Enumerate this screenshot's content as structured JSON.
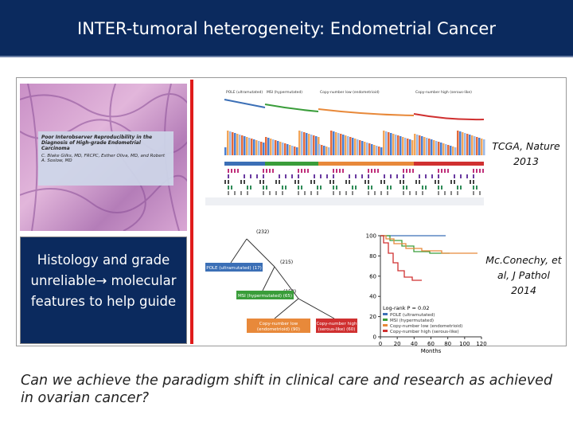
{
  "header": {
    "title": "INTER-tumoral heterogeneity: Endometrial Cancer"
  },
  "histology": {
    "paper_title": "Poor Interobserver Reproducibility in the Diagnosis of High-grade Endometrial Carcinoma",
    "authors": "C. Blake Gilks, MD, FRCPC, Esther Oliva, MD, and Robert A. Soslow, MD"
  },
  "callout": "Histology and grade unreliable→ molecular features to help guide",
  "tcga": {
    "groups": [
      "POLE (ultramutated)",
      "MSI (hypermutated)",
      "Copy-number low (endometrioid)",
      "Copy-number high (serous-like)"
    ],
    "citation": "TCGA, Nature 2013"
  },
  "tree": {
    "root": "(232)",
    "pole": "POLE (ultramutated) (17)",
    "node2": "(215)",
    "msi": "MSI (hypermutated) (65)",
    "node3": "(150)",
    "cnl": [
      "Copy-number low",
      "(endometrioid) (90)"
    ],
    "cnh": [
      "Copy-number high",
      "(serous-like) (60)"
    ]
  },
  "km": {
    "yticks": [
      0,
      20,
      40,
      60,
      80,
      100
    ],
    "xticks": [
      0,
      20,
      40,
      60,
      80,
      100,
      120
    ],
    "xlabel": "Months",
    "pvalue": "Log-rank P = 0.02",
    "legend": [
      "POLE (ultramutated)",
      "MSI (hypermutated)",
      "Copy-number low (endometrioid)",
      "Copy-number high (serous-like)"
    ],
    "citation": "Mc.Conechy, et al, J Pathol 2014"
  },
  "question": "Can we achieve the paradigm shift in clinical care and research as achieved in ovarian cancer?"
}
